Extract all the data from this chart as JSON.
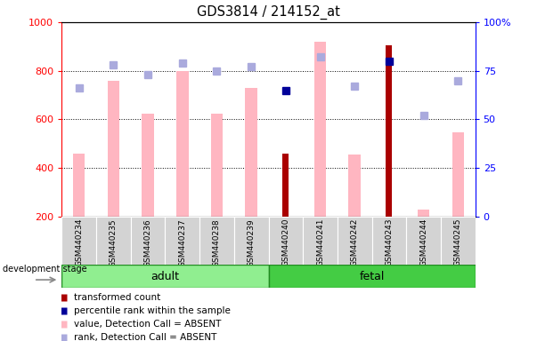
{
  "title": "GDS3814 / 214152_at",
  "samples": [
    "GSM440234",
    "GSM440235",
    "GSM440236",
    "GSM440237",
    "GSM440238",
    "GSM440239",
    "GSM440240",
    "GSM440241",
    "GSM440242",
    "GSM440243",
    "GSM440244",
    "GSM440245"
  ],
  "groups": [
    "adult",
    "adult",
    "adult",
    "adult",
    "adult",
    "adult",
    "fetal",
    "fetal",
    "fetal",
    "fetal",
    "fetal",
    "fetal"
  ],
  "transformed_count": [
    null,
    null,
    null,
    null,
    null,
    null,
    460,
    null,
    null,
    905,
    null,
    null
  ],
  "percentile_rank_present": [
    null,
    null,
    null,
    null,
    null,
    null,
    65,
    null,
    null,
    80,
    null,
    null
  ],
  "value_absent": [
    460,
    760,
    625,
    800,
    625,
    730,
    null,
    920,
    455,
    null,
    230,
    545
  ],
  "rank_absent": [
    66,
    78,
    73,
    79,
    75,
    77,
    null,
    82,
    67,
    null,
    52,
    70
  ],
  "ylim_left": [
    200,
    1000
  ],
  "ylim_right": [
    0,
    100
  ],
  "yticks_left": [
    200,
    400,
    600,
    800,
    1000
  ],
  "yticks_right": [
    0,
    25,
    50,
    75,
    100
  ],
  "absent_value_color": "#FFB6C1",
  "absent_rank_color": "#AAAADD",
  "present_value_color": "#AA0000",
  "present_rank_color": "#000099",
  "background_color": "#ffffff",
  "group_label_bg": "#D3D3D3",
  "adult_color": "#90EE90",
  "fetal_color": "#44CC44",
  "legend_items": [
    {
      "label": "transformed count",
      "color": "#AA0000"
    },
    {
      "label": "percentile rank within the sample",
      "color": "#000099"
    },
    {
      "label": "value, Detection Call = ABSENT",
      "color": "#FFB6C1"
    },
    {
      "label": "rank, Detection Call = ABSENT",
      "color": "#AAAADD"
    }
  ]
}
